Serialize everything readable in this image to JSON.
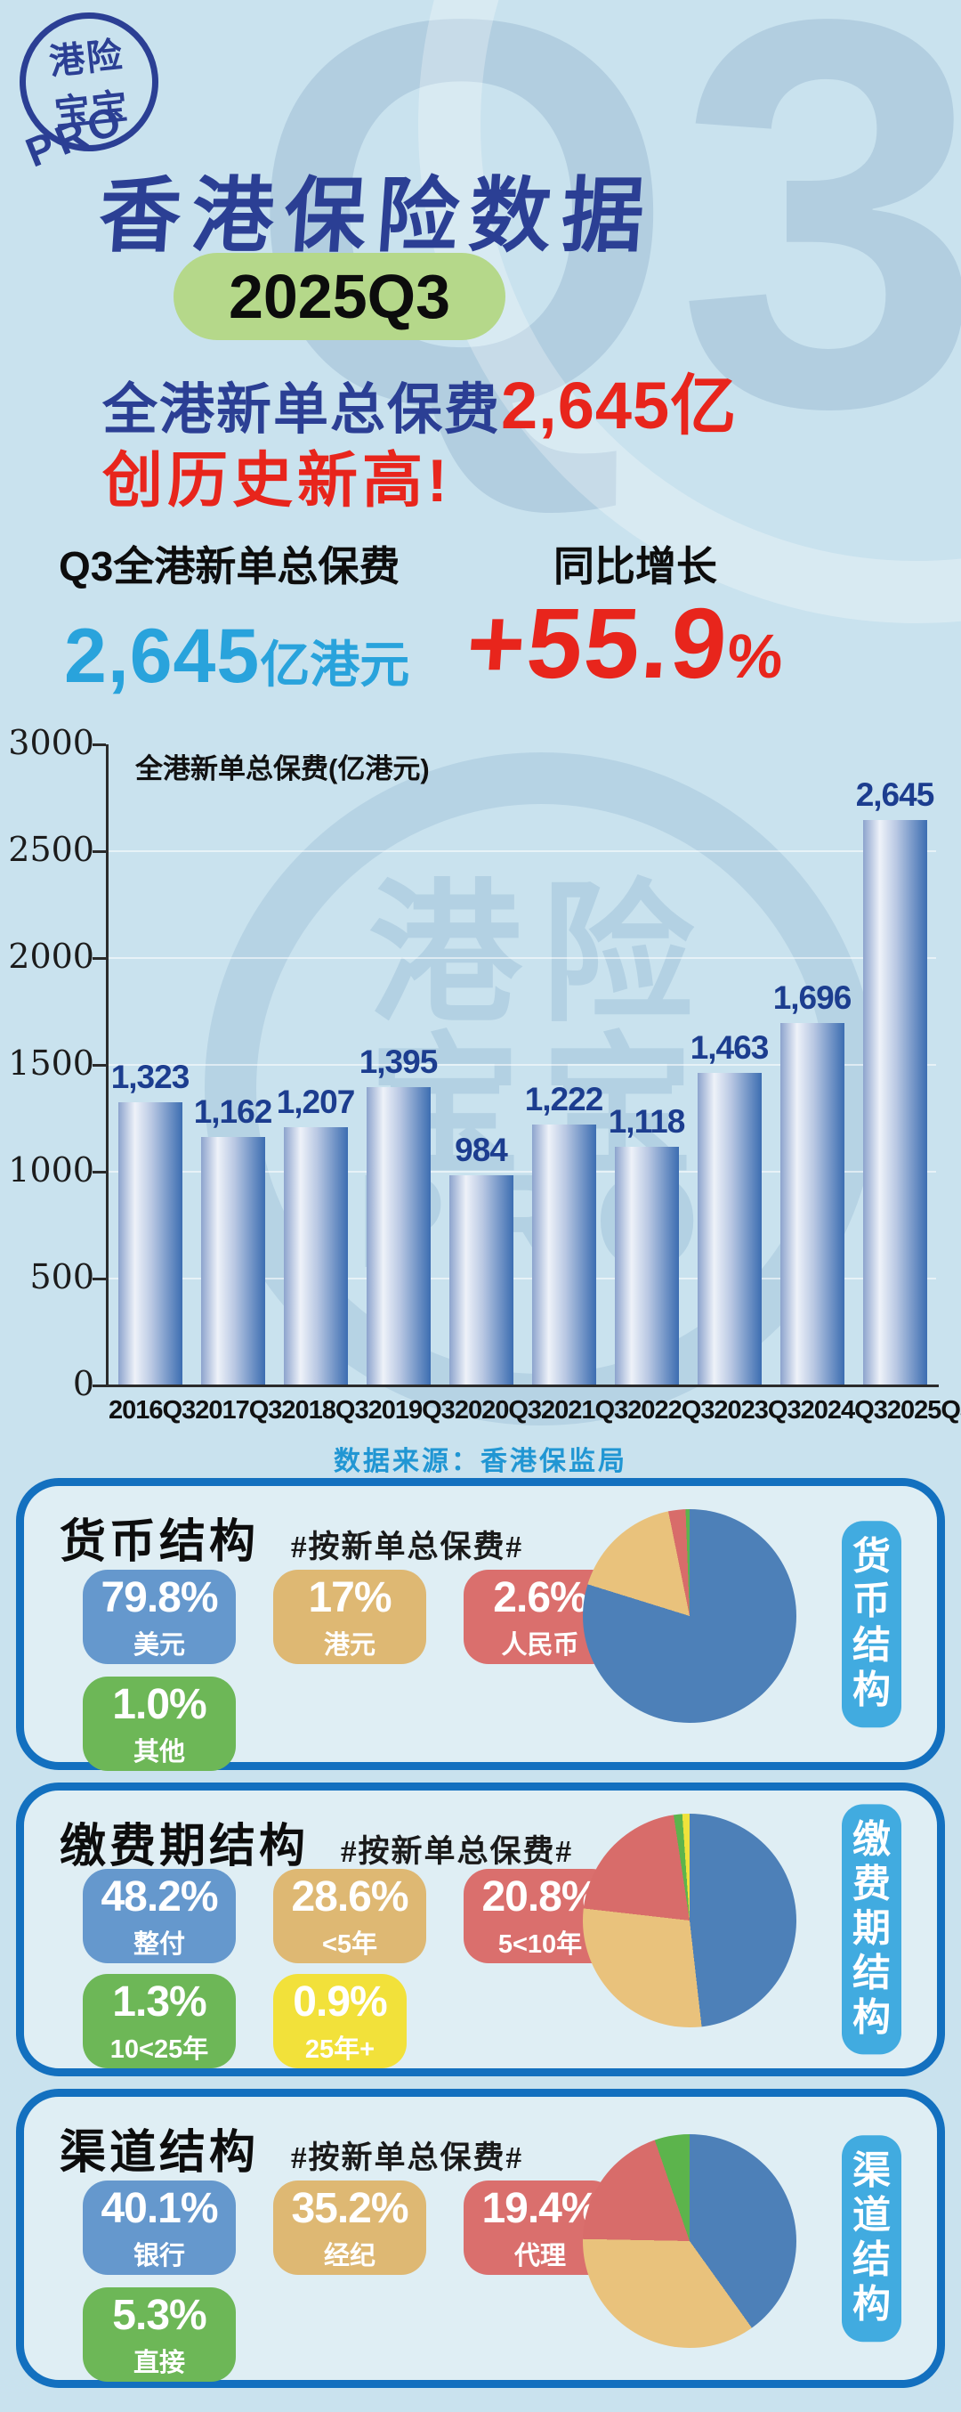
{
  "decor": {
    "watermark": "Q3",
    "chart_watermark_line1": "港险",
    "chart_watermark_line2": "宝宝",
    "chart_watermark_line3": "PRO"
  },
  "logo": {
    "line1": "港险",
    "line2": "宝宝",
    "line3": "PRO"
  },
  "header": {
    "title": "香港保险数据",
    "quarter": "2025Q3",
    "headline_prefix": "全港新单总保费",
    "headline_value": "2,645亿",
    "headline_line2": "创历史新高!",
    "stat_left_label": "Q3全港新单总保费",
    "stat_left_value": "2,645",
    "stat_left_unit": "亿港元",
    "stat_right_label": "同比增长",
    "stat_right_value": "+55.9",
    "stat_right_unit": "%"
  },
  "colors": {
    "page_bg": "#c9e2ee",
    "deep_blue": "#2b3f94",
    "red": "#e8251c",
    "cyan": "#29a3dc",
    "pill_green": "#b5d88a",
    "panel_border": "#1370bf",
    "panel_bg": "#dfeef4",
    "tab_blue": "#41abe0",
    "source_blue": "#2196d3",
    "bar_label_blue": "#1c3d8f"
  },
  "chart_data": [
    {
      "type": "bar",
      "title": "全港新单总保费(亿港元)",
      "source": "数据来源：香港保监局",
      "categories": [
        "2016Q3",
        "2017Q3",
        "2018Q3",
        "2019Q3",
        "2020Q3",
        "2021Q3",
        "2022Q3",
        "2023Q3",
        "2024Q3",
        "2025Q3"
      ],
      "values": [
        1323,
        1162,
        1207,
        1395,
        984,
        1222,
        1118,
        1463,
        1696,
        2645
      ],
      "value_labels": [
        "1,323",
        "1,162",
        "1,207",
        "1,395",
        "984",
        "1,222",
        "1,118",
        "1,463",
        "1,696",
        "2,645"
      ],
      "ylim": [
        0,
        3000
      ],
      "yticks": [
        3000,
        2500,
        2000,
        1500,
        1000,
        500,
        0
      ],
      "grid": "faint white horizontal gridlines",
      "legend": "none"
    },
    {
      "type": "pie",
      "name": "货币结构",
      "note": "#按新单总保费#",
      "slices": [
        {
          "label": "美元",
          "pct": 79.8,
          "color": "#4d80b8"
        },
        {
          "label": "港元",
          "pct": 17.0,
          "color": "#e9c27c"
        },
        {
          "label": "人民币",
          "pct": 2.6,
          "color": "#d86c6a"
        },
        {
          "label": "其他",
          "pct": 1.0,
          "color": "#5cb44c"
        }
      ]
    },
    {
      "type": "pie",
      "name": "缴费期结构",
      "note": "#按新单总保费#",
      "slices": [
        {
          "label": "整付",
          "pct": 48.2,
          "color": "#4d80b8"
        },
        {
          "label": "<5年",
          "pct": 28.6,
          "color": "#e9c27c"
        },
        {
          "label": "5<10年",
          "pct": 20.8,
          "color": "#d86c6a"
        },
        {
          "label": "10<25年",
          "pct": 1.3,
          "color": "#5cb44c"
        },
        {
          "label": "25年+",
          "pct": 0.9,
          "color": "#efe23b"
        }
      ]
    },
    {
      "type": "pie",
      "name": "渠道结构",
      "note": "#按新单总保费#",
      "slices": [
        {
          "label": "银行",
          "pct": 40.1,
          "color": "#4d80b8"
        },
        {
          "label": "经纪",
          "pct": 35.2,
          "color": "#e9c27c"
        },
        {
          "label": "代理",
          "pct": 19.4,
          "color": "#d86c6a"
        },
        {
          "label": "直接",
          "pct": 5.3,
          "color": "#5cb44c"
        }
      ]
    }
  ],
  "sections": [
    {
      "id": "currency",
      "title": "货币结构",
      "tag": "#按新单总保费#",
      "tab": "货币结构",
      "badges": [
        {
          "key": "usd",
          "value": "79.8%",
          "label": "美元",
          "color": "#6598cd"
        },
        {
          "key": "hkd",
          "value": "17%",
          "label": "港元",
          "color": "#deb873"
        },
        {
          "key": "rmb",
          "value": "2.6%",
          "label": "人民币",
          "color": "#da6f6d"
        },
        {
          "key": "other",
          "value": "1.0%",
          "label": "其他",
          "color": "#6db757"
        }
      ]
    },
    {
      "id": "payment-term",
      "title": "缴费期结构",
      "tag": "#按新单总保费#",
      "tab": "缴费期结构",
      "badges": [
        {
          "key": "single-pay",
          "value": "48.2%",
          "label": "整付",
          "color": "#6598cd"
        },
        {
          "key": "lt5y",
          "value": "28.6%",
          "label": "<5年",
          "color": "#deb873"
        },
        {
          "key": "5to10y",
          "value": "20.8%",
          "label": "5<10年",
          "color": "#da6f6d"
        },
        {
          "key": "10to25y",
          "value": "1.3%",
          "label": "10<25年",
          "color": "#6db757"
        },
        {
          "key": "25yplus",
          "value": "0.9%",
          "label": "25年+",
          "color": "#f2e13a"
        }
      ]
    },
    {
      "id": "channel",
      "title": "渠道结构",
      "tag": "#按新单总保费#",
      "tab": "渠道结构",
      "badges": [
        {
          "key": "bank",
          "value": "40.1%",
          "label": "银行",
          "color": "#6598cd"
        },
        {
          "key": "broker",
          "value": "35.2%",
          "label": "经纪",
          "color": "#deb873"
        },
        {
          "key": "agency",
          "value": "19.4%",
          "label": "代理",
          "color": "#da6f6d"
        },
        {
          "key": "direct",
          "value": "5.3%",
          "label": "直接",
          "color": "#6db757"
        }
      ]
    }
  ]
}
